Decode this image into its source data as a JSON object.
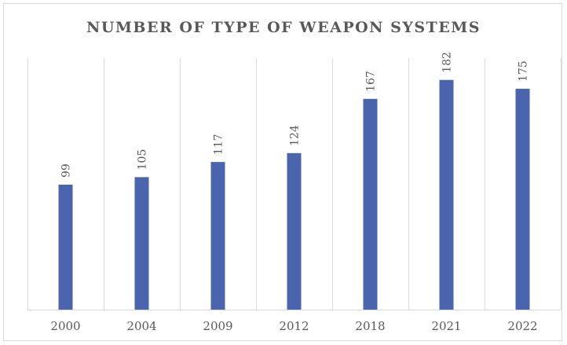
{
  "chart_data": {
    "type": "bar",
    "title": "NUMBER OF TYPE OF WEAPON SYSTEMS",
    "categories": [
      "2000",
      "2004",
      "2009",
      "2012",
      "2018",
      "2021",
      "2022"
    ],
    "values": [
      99,
      105,
      117,
      124,
      167,
      182,
      175
    ],
    "data_labels": [
      "99",
      "105",
      "117",
      "124",
      "167",
      "182",
      "175"
    ],
    "xlabel": "",
    "ylabel": "",
    "ylim": [
      0,
      200
    ],
    "grid": "vertical-category-separators",
    "legend": "none",
    "bar_color": "#4a65ad"
  }
}
